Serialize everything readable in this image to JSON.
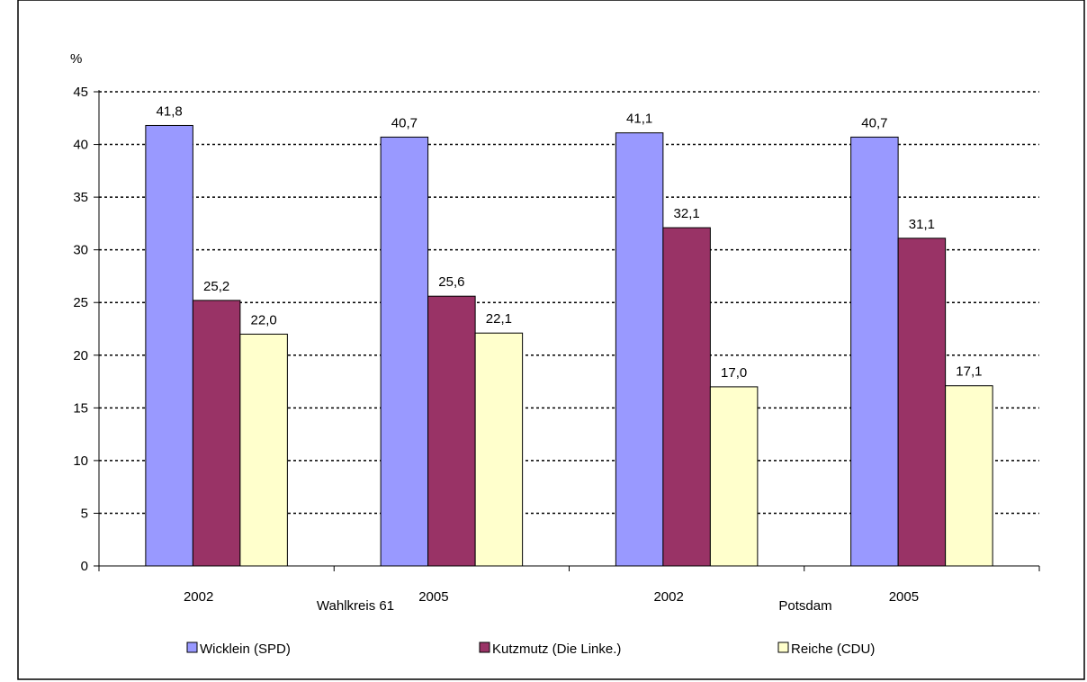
{
  "chart_data": {
    "type": "bar",
    "ylabel": "%",
    "ylim": [
      0,
      45
    ],
    "yticks": [
      "0",
      "5",
      "10",
      "15",
      "20",
      "25",
      "30",
      "35",
      "40",
      "45"
    ],
    "grid": true,
    "legend_position": "bottom",
    "groups": [
      {
        "name": "Wahlkreis 61",
        "categories": [
          "2002",
          "2005"
        ]
      },
      {
        "name": "Potsdam",
        "categories": [
          "2002",
          "2005"
        ]
      }
    ],
    "categories": [
      "2002",
      "2005",
      "2002",
      "2005"
    ],
    "series": [
      {
        "name": "Wicklein (SPD)",
        "color": "#9999ff",
        "values": [
          41.8,
          40.7,
          41.1,
          40.7
        ],
        "labels": [
          "41,8",
          "40,7",
          "41,1",
          "40,7"
        ]
      },
      {
        "name": "Kutzmutz (Die Linke.)",
        "color": "#993366",
        "values": [
          25.2,
          25.6,
          32.1,
          31.1
        ],
        "labels": [
          "25,2",
          "25,6",
          "32,1",
          "31,1"
        ]
      },
      {
        "name": "Reiche (CDU)",
        "color": "#ffffcc",
        "values": [
          22.0,
          22.1,
          17.0,
          17.1
        ],
        "labels": [
          "22,0",
          "22,1",
          "17,0",
          "17,1"
        ]
      }
    ]
  }
}
